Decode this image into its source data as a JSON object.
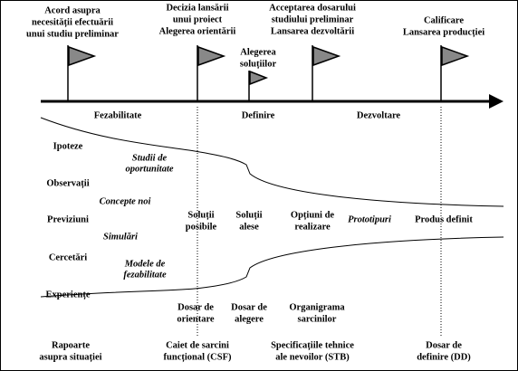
{
  "milestones": [
    {
      "lines": [
        "Acord asupra",
        "necesității efectuării",
        "unui studiu preliminar"
      ]
    },
    {
      "lines": [
        "Decizia lansării",
        "unui proiect",
        "Alegerea orientării"
      ]
    },
    {
      "lines": [
        "Alegerea",
        "soluțiilor"
      ]
    },
    {
      "lines": [
        "Acceptarea dosarului",
        "studiului preliminar",
        "Lansarea dezvoltării"
      ]
    },
    {
      "lines": [
        "Calificare",
        "Lansarea producției"
      ]
    }
  ],
  "phases": [
    "Fezabilitate",
    "Definire",
    "Dezvoltare"
  ],
  "inputs": [
    "Ipoteze",
    "Observații",
    "Previziuni",
    "Cercetări",
    "Experiențe"
  ],
  "activities": [
    {
      "lines": [
        "Studii de",
        "oportunitate"
      ]
    },
    {
      "lines": [
        "Concepte noi"
      ]
    },
    {
      "lines": [
        "Simulări"
      ]
    },
    {
      "lines": [
        "Modele de",
        "fezabilitate"
      ]
    }
  ],
  "results": [
    {
      "lines": [
        "Soluții",
        "posibile"
      ]
    },
    {
      "lines": [
        "Soluții",
        "alese"
      ]
    },
    {
      "lines": [
        "Opțiuni de",
        "realizare"
      ]
    },
    {
      "lines": [
        "Prototipuri"
      ]
    },
    {
      "lines": [
        "Produs definit"
      ]
    }
  ],
  "dossiers": [
    {
      "lines": [
        "Dosar de",
        "orientare"
      ]
    },
    {
      "lines": [
        "Dosar de",
        "alegere"
      ]
    },
    {
      "lines": [
        "Organigrama",
        "sarcinilor"
      ]
    }
  ],
  "documents": [
    {
      "lines": [
        "Rapoarte",
        "asupra situației"
      ]
    },
    {
      "lines": [
        "Caiet de sarcini",
        "funcțional (CSF)"
      ]
    },
    {
      "lines": [
        "Specificațiile tehnice",
        "ale nevoilor (STB)"
      ]
    },
    {
      "lines": [
        "Dosar de",
        "definire (DD)"
      ]
    }
  ]
}
